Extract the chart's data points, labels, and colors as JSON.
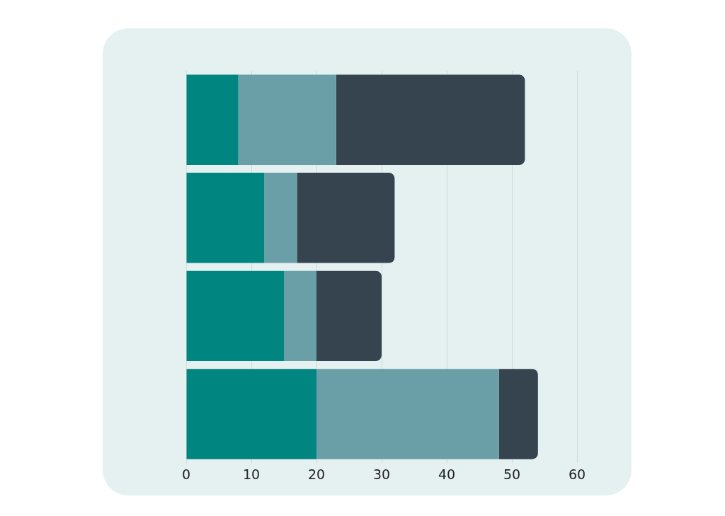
{
  "chart_data": {
    "type": "bar",
    "orientation": "horizontal",
    "stacked": true,
    "categories": [
      null,
      null,
      null,
      null
    ],
    "series": [
      {
        "color": "#008580",
        "values": [
          8,
          12,
          15,
          20
        ]
      },
      {
        "color": "#6a9fa8",
        "values": [
          15,
          5,
          5,
          28
        ]
      },
      {
        "color": "#36444f",
        "values": [
          29,
          15,
          10,
          6
        ]
      }
    ],
    "xlim": [
      0,
      60
    ],
    "xticks": [
      0,
      10,
      20,
      30,
      40,
      50,
      60
    ],
    "grid": "x",
    "tick_labels": "x"
  }
}
